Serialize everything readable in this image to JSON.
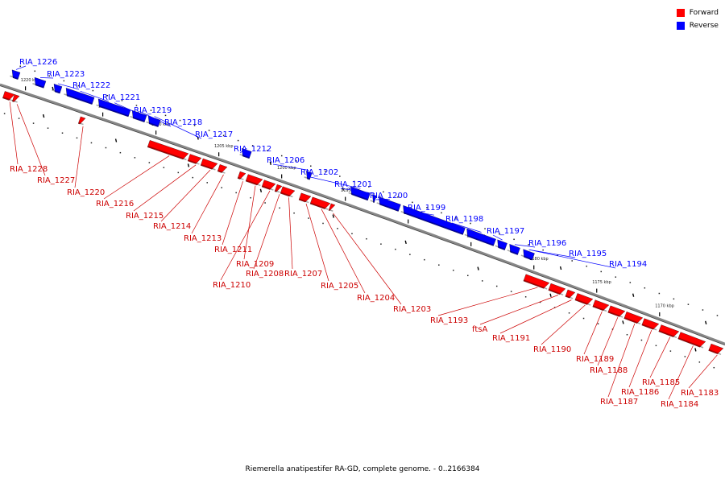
{
  "legend": [
    {
      "label": "Forward",
      "color": "#ff0000"
    },
    {
      "label": "Reverse",
      "color": "#0000ff"
    }
  ],
  "caption": "Riemerella anatipestifer RA-GD, complete genome. - 0..2166384",
  "colors": {
    "forward": "#ff0000",
    "reverse": "#0000ff",
    "backbone": "#888888"
  },
  "ticks": [
    "1220 kbp",
    "1215 kbp",
    "1210 kbp",
    "1205 kbp",
    "1200 kbp",
    "1195 kbp",
    "1190 kbp",
    "1185 kbp",
    "1180 kbp",
    "1175 kbp",
    "1170 kbp"
  ],
  "reverse_genes": [
    "RIA_1226",
    "RIA_1223",
    "RIA_1222",
    "RIA_1221",
    "RIA_1219",
    "RIA_1218",
    "RIA_1217",
    "RIA_1212",
    "RIA_1206",
    "RIA_1202",
    "RIA_1201",
    "RIA_1200",
    "RIA_1199",
    "RIA_1198",
    "RIA_1197",
    "RIA_1196",
    "RIA_1195",
    "RIA_1194"
  ],
  "forward_genes": [
    "RIA_1228",
    "RIA_1227",
    "RIA_1220",
    "RIA_1216",
    "RIA_1215",
    "RIA_1214",
    "RIA_1213",
    "RIA_1211",
    "RIA_1209",
    "RIA_1210",
    "RIA_1208",
    "RIA_1207",
    "RIA_1205",
    "RIA_1204",
    "RIA_1203",
    "RIA_1193",
    "ftsA",
    "RIA_1191",
    "RIA_1190",
    "RIA_1189",
    "RIA_1188",
    "RIA_1187",
    "RIA_1186",
    "RIA_1185",
    "RIA_1184",
    "RIA_1183"
  ]
}
